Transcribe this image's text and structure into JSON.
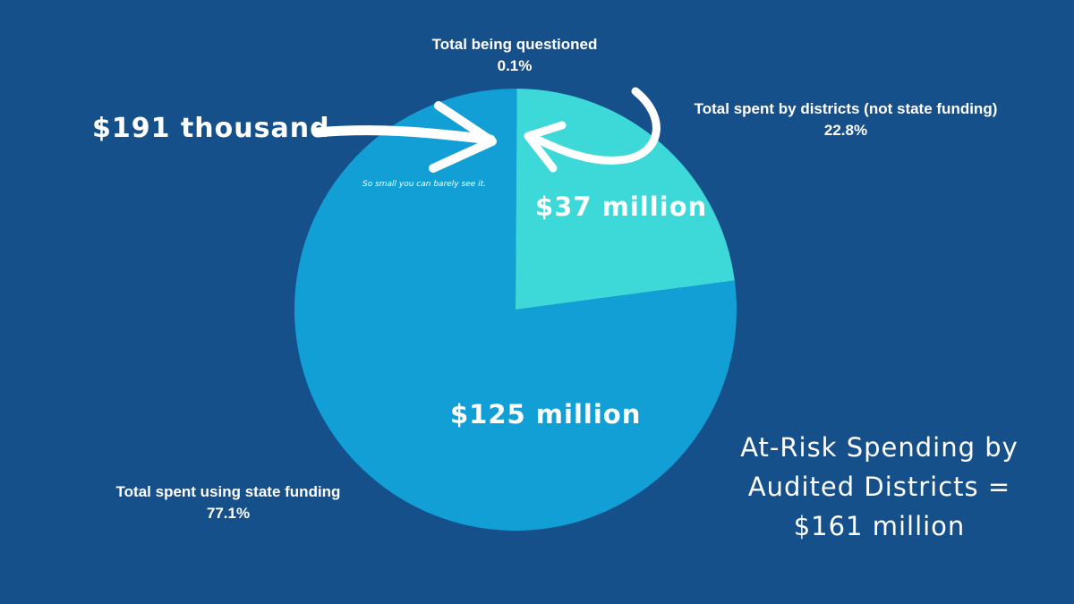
{
  "colors": {
    "background": "#16508a",
    "state_funding": "#119fd6",
    "districts": "#3dd8d8",
    "questioned": "#119fd6",
    "arrow": "#ffffff"
  },
  "chart_data": {
    "type": "pie",
    "slices": [
      {
        "key": "questioned",
        "label": "Total being questioned",
        "percent": 0.1,
        "percent_label": "0.1%",
        "amount_label": "$191 thousand"
      },
      {
        "key": "districts",
        "label": "Total spent by districts (not state funding)",
        "percent": 22.8,
        "percent_label": "22.8%",
        "amount_label": "$37 million"
      },
      {
        "key": "state_funding",
        "label": "Total spent using state funding",
        "percent": 77.1,
        "percent_label": "77.1%",
        "amount_label": "$125 million"
      }
    ],
    "annotation": "So small you can barely see it.",
    "total_title": [
      "At-Risk Spending by",
      "Audited Districts =",
      "$161 million"
    ]
  }
}
